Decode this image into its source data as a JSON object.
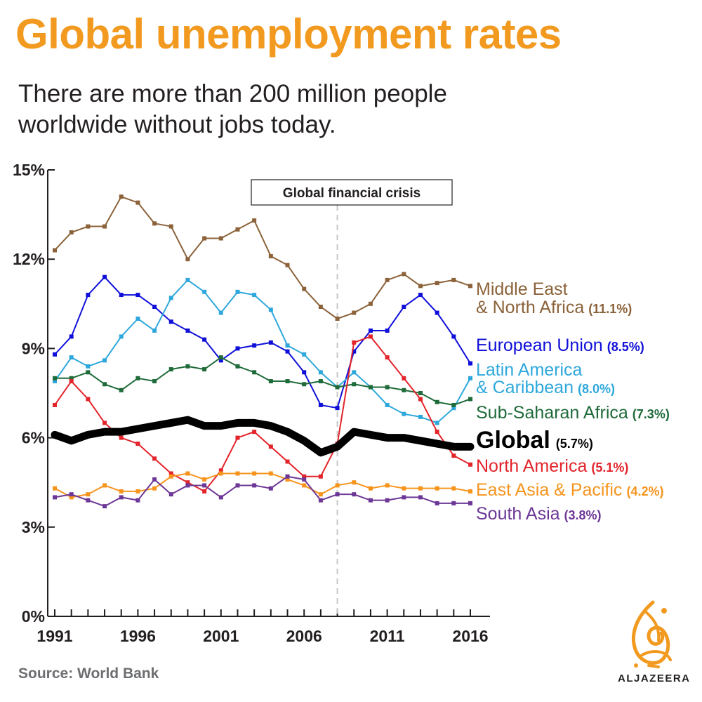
{
  "title": "Global unemployment rates",
  "subtitle": "There are more than 200 million people worldwide without jobs today.",
  "source": "Source: World Bank",
  "brand": "ALJAZEERA",
  "colors": {
    "title": "#f29a1f",
    "text": "#231f20",
    "source": "#6d6e71",
    "crisis_line": "#c8c8c8"
  },
  "chart_data": {
    "type": "line",
    "title": "Global unemployment rates",
    "x": [
      1991,
      1992,
      1993,
      1994,
      1995,
      1996,
      1997,
      1998,
      1999,
      2000,
      2001,
      2002,
      2003,
      2004,
      2005,
      2006,
      2007,
      2008,
      2009,
      2010,
      2011,
      2012,
      2013,
      2014,
      2015,
      2016
    ],
    "xticks": [
      1991,
      1996,
      2001,
      2006,
      2011,
      2016
    ],
    "xlim": [
      1991,
      2016
    ],
    "ylim": [
      0,
      15
    ],
    "yticks": [
      0,
      3,
      6,
      9,
      12,
      15
    ],
    "ytick_labels": [
      "0%",
      "3%",
      "6%",
      "9%",
      "12%",
      "15%"
    ],
    "grid": false,
    "annotation": {
      "label": "Global financial crisis",
      "x": 2008
    },
    "series": [
      {
        "name": "Middle East\n& North Africa",
        "value_label": "(11.1%)",
        "color": "#8b6239",
        "width": 2,
        "markers": true,
        "values": [
          12.3,
          12.9,
          13.1,
          13.1,
          14.1,
          13.9,
          13.2,
          13.1,
          12.0,
          12.7,
          12.7,
          13.0,
          13.3,
          12.1,
          11.8,
          11.0,
          10.4,
          10.0,
          10.2,
          10.5,
          11.3,
          11.5,
          11.1,
          11.2,
          11.3,
          11.1
        ]
      },
      {
        "name": "European Union",
        "value_label": "(8.5%)",
        "color": "#0f0fd9",
        "width": 2,
        "markers": true,
        "values": [
          8.8,
          9.4,
          10.8,
          11.4,
          10.8,
          10.8,
          10.4,
          9.9,
          9.6,
          9.3,
          8.6,
          9.0,
          9.1,
          9.2,
          8.9,
          8.2,
          7.1,
          7.0,
          8.9,
          9.6,
          9.6,
          10.4,
          10.8,
          10.2,
          9.4,
          8.5
        ]
      },
      {
        "name": "Latin America\n& Caribbean",
        "value_label": "(8.0%)",
        "color": "#2ea8dc",
        "width": 2,
        "markers": true,
        "values": [
          7.9,
          8.7,
          8.4,
          8.6,
          9.4,
          10.0,
          9.6,
          10.7,
          11.3,
          10.9,
          10.2,
          10.9,
          10.8,
          10.3,
          9.1,
          8.8,
          8.2,
          7.7,
          8.2,
          7.7,
          7.1,
          6.8,
          6.7,
          6.5,
          7.0,
          8.0
        ]
      },
      {
        "name": "Sub-Saharan Africa",
        "value_label": "(7.3%)",
        "color": "#1f6b3a",
        "width": 2,
        "markers": true,
        "values": [
          8.0,
          8.0,
          8.2,
          7.8,
          7.6,
          8.0,
          7.9,
          8.3,
          8.4,
          8.3,
          8.7,
          8.4,
          8.2,
          7.9,
          7.9,
          7.8,
          7.9,
          7.7,
          7.8,
          7.7,
          7.7,
          7.6,
          7.5,
          7.2,
          7.1,
          7.3
        ]
      },
      {
        "name": "Global",
        "value_label": "(5.7%)",
        "color": "#000000",
        "width": 11,
        "markers": false,
        "big": true,
        "values": [
          6.1,
          5.9,
          6.1,
          6.2,
          6.2,
          6.3,
          6.4,
          6.5,
          6.6,
          6.4,
          6.4,
          6.5,
          6.5,
          6.4,
          6.2,
          5.9,
          5.5,
          5.7,
          6.2,
          6.1,
          6.0,
          6.0,
          5.9,
          5.8,
          5.7,
          5.7
        ]
      },
      {
        "name": "North America",
        "value_label": "(5.1%)",
        "color": "#e3242b",
        "width": 2,
        "markers": true,
        "values": [
          7.1,
          7.9,
          7.3,
          6.5,
          6.0,
          5.8,
          5.3,
          4.8,
          4.5,
          4.2,
          4.9,
          6.0,
          6.2,
          5.7,
          5.2,
          4.7,
          4.7,
          5.8,
          9.2,
          9.4,
          8.7,
          8.0,
          7.3,
          6.2,
          5.4,
          5.1
        ]
      },
      {
        "name": "East Asia & Pacific",
        "value_label": "(4.2%)",
        "color": "#f7941d",
        "width": 2,
        "markers": true,
        "values": [
          4.3,
          4.0,
          4.1,
          4.4,
          4.2,
          4.2,
          4.3,
          4.7,
          4.8,
          4.6,
          4.8,
          4.8,
          4.8,
          4.8,
          4.6,
          4.4,
          4.1,
          4.4,
          4.5,
          4.3,
          4.4,
          4.3,
          4.3,
          4.3,
          4.3,
          4.2
        ]
      },
      {
        "name": "South Asia",
        "value_label": "(3.8%)",
        "color": "#6d3796",
        "width": 2,
        "markers": true,
        "values": [
          4.0,
          4.1,
          3.9,
          3.7,
          4.0,
          3.9,
          4.6,
          4.1,
          4.4,
          4.4,
          4.0,
          4.4,
          4.4,
          4.3,
          4.7,
          4.6,
          3.9,
          4.1,
          4.1,
          3.9,
          3.9,
          4.0,
          4.0,
          3.8,
          3.8,
          3.8
        ]
      }
    ]
  }
}
